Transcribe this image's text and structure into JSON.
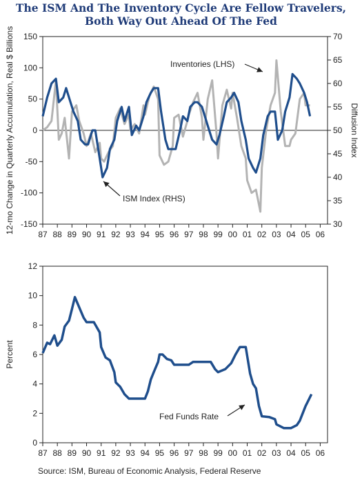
{
  "title_line1": "The ISM And The Inventory Cycle Are Fellow Travelers,",
  "title_line2": "Both Way Out Ahead Of The Fed",
  "source": "Source: ISM, Bureau of Economic Analysis, Federal Reserve",
  "colors": {
    "ism": "#1f4e8c",
    "inventories": "#b3b3b3",
    "fed": "#1f4e8c",
    "title": "#1f3b78"
  },
  "chart_data": [
    {
      "type": "line",
      "x_ticks": [
        "87",
        "88",
        "89",
        "90",
        "91",
        "92",
        "93",
        "94",
        "95",
        "96",
        "97",
        "98",
        "99",
        "00",
        "01",
        "02",
        "03",
        "04",
        "05",
        "06"
      ],
      "xlim": [
        1987,
        2006.5
      ],
      "ylabel": "12-mo Change in Quarterly Accumulation, Real $ Billions",
      "y2label": "Diffusion Index",
      "ylim": [
        -150,
        150
      ],
      "y_ticks": [
        -150,
        -100,
        -50,
        0,
        50,
        100,
        150
      ],
      "y2lim": [
        30,
        70
      ],
      "y2_ticks": [
        30,
        35,
        40,
        45,
        50,
        55,
        60,
        65,
        70
      ],
      "annotations": [
        {
          "text": "Inventories (LHS)",
          "points_to": "inventories"
        },
        {
          "text": "ISM Index (RHS)",
          "points_to": "ism"
        }
      ],
      "series": [
        {
          "name": "Inventories (LHS)",
          "axis": "left",
          "x": [
            1987.0,
            1987.3,
            1987.6,
            1987.9,
            1988.1,
            1988.3,
            1988.5,
            1988.8,
            1989.0,
            1989.3,
            1989.5,
            1989.8,
            1990.0,
            1990.3,
            1990.6,
            1990.9,
            1991.0,
            1991.2,
            1991.5,
            1991.8,
            1992.0,
            1992.3,
            1992.6,
            1992.9,
            1993.0,
            1993.3,
            1993.6,
            1993.9,
            1994.0,
            1994.3,
            1994.6,
            1994.9,
            1995.0,
            1995.3,
            1995.6,
            1995.9,
            1996.0,
            1996.3,
            1996.6,
            1996.9,
            1997.0,
            1997.3,
            1997.6,
            1997.9,
            1998.0,
            1998.3,
            1998.6,
            1998.9,
            1999.0,
            1999.3,
            1999.6,
            1999.9,
            2000.0,
            2000.3,
            2000.6,
            2000.9,
            2001.0,
            2001.3,
            2001.6,
            2001.9,
            2002.0,
            2002.3,
            2002.6,
            2002.9,
            2003.0,
            2003.3,
            2003.6,
            2003.9,
            2004.0,
            2004.3,
            2004.6,
            2004.9,
            2005.0,
            2005.3
          ],
          "values": [
            0,
            5,
            15,
            80,
            -15,
            -5,
            20,
            -45,
            30,
            40,
            15,
            -5,
            -25,
            -5,
            -35,
            -20,
            -45,
            -50,
            -35,
            -25,
            20,
            35,
            10,
            25,
            0,
            10,
            -5,
            40,
            25,
            55,
            70,
            50,
            -40,
            -55,
            -50,
            -25,
            20,
            25,
            -10,
            15,
            25,
            45,
            60,
            20,
            -15,
            50,
            80,
            -5,
            -45,
            40,
            65,
            35,
            60,
            20,
            -25,
            -45,
            -80,
            -100,
            -95,
            -130,
            -60,
            0,
            40,
            60,
            112,
            30,
            -25,
            -25,
            -15,
            -5,
            50,
            60,
            40,
            40
          ]
        },
        {
          "name": "ISM Index (RHS)",
          "axis": "right",
          "x": [
            1987.0,
            1987.3,
            1987.6,
            1987.9,
            1988.1,
            1988.4,
            1988.6,
            1988.9,
            1989.1,
            1989.4,
            1989.6,
            1989.9,
            1990.1,
            1990.4,
            1990.6,
            1990.9,
            1991.1,
            1991.4,
            1991.6,
            1991.9,
            1992.1,
            1992.4,
            1992.6,
            1992.9,
            1993.1,
            1993.4,
            1993.6,
            1993.9,
            1994.1,
            1994.4,
            1994.6,
            1994.9,
            1995.1,
            1995.4,
            1995.6,
            1995.9,
            1996.1,
            1996.4,
            1996.6,
            1996.9,
            1997.1,
            1997.4,
            1997.6,
            1997.9,
            1998.1,
            1998.4,
            1998.6,
            1998.9,
            1999.1,
            1999.4,
            1999.6,
            1999.9,
            2000.1,
            2000.4,
            2000.6,
            2000.9,
            2001.1,
            2001.4,
            2001.6,
            2001.9,
            2002.1,
            2002.4,
            2002.6,
            2002.9,
            2003.1,
            2003.4,
            2003.6,
            2003.9,
            2004.1,
            2004.4,
            2004.6,
            2004.9,
            2005.1,
            2005.3
          ],
          "values": [
            53,
            57,
            60,
            61,
            56,
            57,
            59,
            56,
            54,
            52,
            48,
            47,
            47,
            50,
            50,
            44,
            40,
            42,
            46,
            48,
            52,
            55,
            52,
            55,
            49,
            51,
            50,
            53,
            56,
            58,
            59,
            59,
            54,
            48,
            46,
            46,
            46,
            50,
            53,
            52,
            55,
            56,
            56,
            55,
            53,
            50,
            48,
            47,
            49,
            53,
            56,
            57,
            58,
            56,
            52,
            48,
            44,
            42,
            41,
            44,
            49,
            53,
            54,
            54,
            48,
            50,
            54,
            57,
            62,
            61,
            60,
            58,
            56,
            53
          ]
        }
      ]
    },
    {
      "type": "line",
      "x_ticks": [
        "87",
        "88",
        "89",
        "90",
        "91",
        "92",
        "93",
        "94",
        "95",
        "96",
        "97",
        "98",
        "99",
        "00",
        "01",
        "02",
        "03",
        "04",
        "05",
        "06"
      ],
      "xlim": [
        1987,
        2006.5
      ],
      "ylabel": "Percent",
      "ylim": [
        0,
        12
      ],
      "y_ticks": [
        0,
        2,
        4,
        6,
        8,
        10,
        12
      ],
      "annotations": [
        {
          "text": "Fed Funds Rate",
          "points_to": "fed"
        }
      ],
      "series": [
        {
          "name": "Fed Funds Rate",
          "x": [
            1987.0,
            1987.3,
            1987.5,
            1987.8,
            1988.0,
            1988.3,
            1988.5,
            1988.8,
            1989.0,
            1989.2,
            1989.5,
            1989.8,
            1990.0,
            1990.5,
            1990.9,
            1991.0,
            1991.3,
            1991.6,
            1991.9,
            1992.0,
            1992.3,
            1992.6,
            1992.9,
            1993.0,
            1993.5,
            1994.0,
            1994.2,
            1994.4,
            1994.6,
            1994.9,
            1995.0,
            1995.2,
            1995.5,
            1995.8,
            1996.0,
            1997.0,
            1997.3,
            1998.0,
            1998.5,
            1998.8,
            1999.0,
            1999.5,
            1999.9,
            2000.2,
            2000.5,
            2000.9,
            2001.0,
            2001.2,
            2001.4,
            2001.6,
            2001.8,
            2002.0,
            2002.5,
            2002.9,
            2003.0,
            2003.5,
            2004.0,
            2004.4,
            2004.6,
            2004.8,
            2005.0,
            2005.2,
            2005.4
          ],
          "values": [
            6.1,
            6.8,
            6.7,
            7.3,
            6.6,
            7.0,
            7.9,
            8.3,
            9.1,
            9.9,
            9.2,
            8.5,
            8.2,
            8.2,
            7.5,
            6.5,
            5.8,
            5.6,
            4.8,
            4.1,
            3.8,
            3.3,
            3.0,
            3.0,
            3.0,
            3.0,
            3.5,
            4.3,
            4.8,
            5.5,
            6.0,
            6.0,
            5.7,
            5.6,
            5.3,
            5.3,
            5.5,
            5.5,
            5.5,
            5.0,
            4.8,
            5.0,
            5.4,
            6.0,
            6.5,
            6.5,
            5.9,
            4.7,
            4.0,
            3.7,
            2.5,
            1.8,
            1.75,
            1.6,
            1.25,
            1.0,
            1.0,
            1.2,
            1.5,
            2.0,
            2.5,
            2.9,
            3.3
          ]
        }
      ]
    }
  ]
}
